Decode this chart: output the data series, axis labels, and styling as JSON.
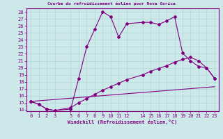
{
  "title": "Courbe du refroidissement éolien pour Nova Gorica",
  "xlabel": "Windchill (Refroidissement éolien,°C)",
  "background_color": "#cce8e8",
  "grid_color": "#b0d8d8",
  "line_color": "#800080",
  "xlim": [
    -0.5,
    23.5
  ],
  "ylim": [
    13.8,
    28.5
  ],
  "xticks": [
    0,
    1,
    2,
    3,
    5,
    6,
    7,
    8,
    9,
    10,
    11,
    12,
    14,
    15,
    16,
    17,
    18,
    19,
    20,
    21,
    22,
    23
  ],
  "yticks": [
    14,
    15,
    16,
    17,
    18,
    19,
    20,
    21,
    22,
    23,
    24,
    25,
    26,
    27,
    28
  ],
  "series1_x": [
    0,
    1,
    2,
    3,
    5,
    6,
    7,
    8,
    9,
    10,
    11,
    12,
    14,
    15,
    16,
    17,
    18,
    19,
    20,
    21,
    22,
    23
  ],
  "series1_y": [
    15.2,
    14.8,
    14.1,
    13.9,
    14.1,
    18.5,
    23.0,
    25.5,
    28.0,
    27.3,
    24.4,
    26.3,
    26.5,
    26.5,
    26.2,
    26.7,
    27.3,
    22.1,
    21.0,
    20.2,
    20.0,
    18.5
  ],
  "series2_x": [
    0,
    1,
    2,
    3,
    5,
    6,
    7,
    8,
    9,
    10,
    11,
    12,
    14,
    15,
    16,
    17,
    18,
    19,
    20,
    21,
    22,
    23
  ],
  "series2_y": [
    15.2,
    14.8,
    14.1,
    13.9,
    14.3,
    15.0,
    15.6,
    16.2,
    16.8,
    17.3,
    17.8,
    18.3,
    19.0,
    19.5,
    19.9,
    20.3,
    20.8,
    21.2,
    21.5,
    21.0,
    20.0,
    18.5
  ],
  "series3_x": [
    0,
    23
  ],
  "series3_y": [
    15.2,
    17.3
  ],
  "marker": "D",
  "markersize": 2,
  "linewidth": 0.8,
  "label_fontsize": 5,
  "tick_fontsize": 5
}
